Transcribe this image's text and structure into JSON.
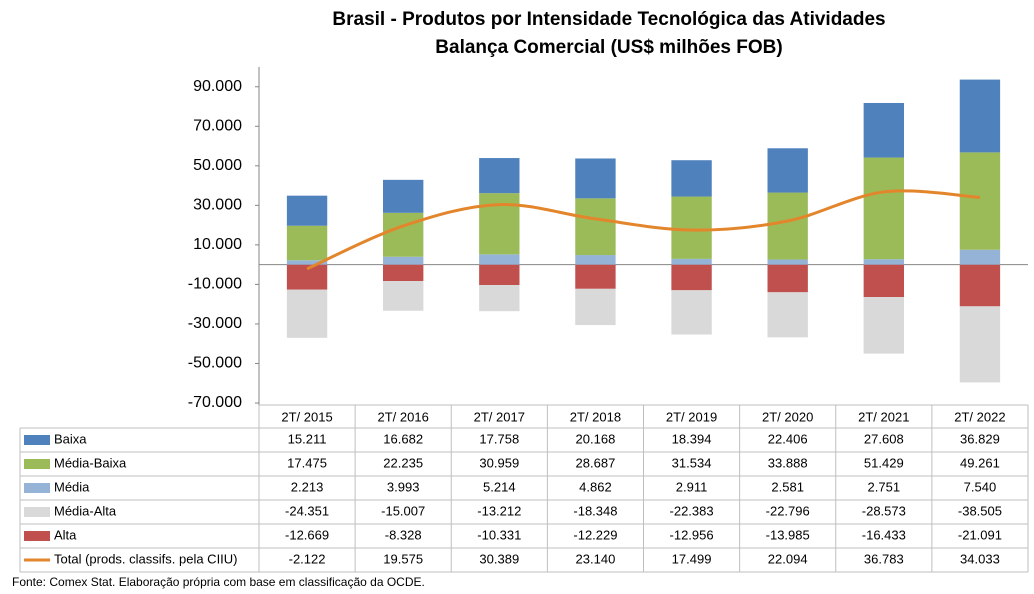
{
  "chart_data": {
    "type": "bar",
    "title": "Brasil - Produtos por Intensidade Tecnológica das Atividades",
    "subtitle": "Balança Comercial (US$ milhões FOB)",
    "categories": [
      "2T/ 2015",
      "2T/ 2016",
      "2T/ 2017",
      "2T/ 2018",
      "2T/ 2019",
      "2T/ 2020",
      "2T/ 2021",
      "2T/ 2022"
    ],
    "series": [
      {
        "name": "Baixa",
        "type": "bar",
        "color": "#4f81bd",
        "values": [
          15211,
          16682,
          17758,
          20168,
          18394,
          22406,
          27608,
          36829
        ],
        "value_labels": [
          "15.211",
          "16.682",
          "17.758",
          "20.168",
          "18.394",
          "22.406",
          "27.608",
          "36.829"
        ]
      },
      {
        "name": "Média-Baixa",
        "type": "bar",
        "color": "#9bbb59",
        "values": [
          17475,
          22235,
          30959,
          28687,
          31534,
          33888,
          51429,
          49261
        ],
        "value_labels": [
          "17.475",
          "22.235",
          "30.959",
          "28.687",
          "31.534",
          "33.888",
          "51.429",
          "49.261"
        ]
      },
      {
        "name": "Média",
        "type": "bar",
        "color": "#95b3d7",
        "values": [
          2213,
          3993,
          5214,
          4862,
          2911,
          2581,
          2751,
          7540
        ],
        "value_labels": [
          "2.213",
          "3.993",
          "5.214",
          "4.862",
          "2.911",
          "2.581",
          "2.751",
          "7.540"
        ]
      },
      {
        "name": "Média-Alta",
        "type": "bar",
        "color": "#d9d9d9",
        "values": [
          -24351,
          -15007,
          -13212,
          -18348,
          -22383,
          -22796,
          -28573,
          -38505
        ],
        "value_labels": [
          "-24.351",
          "-15.007",
          "-13.212",
          "-18.348",
          "-22.383",
          "-22.796",
          "-28.573",
          "-38.505"
        ]
      },
      {
        "name": "Alta",
        "type": "bar",
        "color": "#c0504d",
        "values": [
          -12669,
          -8328,
          -10331,
          -12229,
          -12956,
          -13985,
          -16433,
          -21091
        ],
        "value_labels": [
          "-12.669",
          "-8.328",
          "-10.331",
          "-12.229",
          "-12.956",
          "-13.985",
          "-16.433",
          "-21.091"
        ]
      },
      {
        "name": "Total (prods. classifs. pela CIIU)",
        "type": "line",
        "color": "#e3852b",
        "values": [
          -2122,
          19575,
          30389,
          23140,
          17499,
          22094,
          36783,
          34033
        ],
        "value_labels": [
          "-2.122",
          "19.575",
          "30.389",
          "23.140",
          "17.499",
          "22.094",
          "36.783",
          "34.033"
        ]
      }
    ],
    "ylim": [
      -70000,
      100000
    ],
    "yticks": [
      {
        "value": 90000,
        "label": "90.000"
      },
      {
        "value": 70000,
        "label": "70.000"
      },
      {
        "value": 50000,
        "label": "50.000"
      },
      {
        "value": 30000,
        "label": "30.000"
      },
      {
        "value": 10000,
        "label": "10.000"
      },
      {
        "value": -10000,
        "label": "-10.000"
      },
      {
        "value": -30000,
        "label": "-30.000"
      },
      {
        "value": -50000,
        "label": "-50.000"
      },
      {
        "value": -70000,
        "label": "-70.000"
      }
    ],
    "source": "Fonte:  Comex Stat. Elaboração própria com base em classificação da OCDE."
  }
}
